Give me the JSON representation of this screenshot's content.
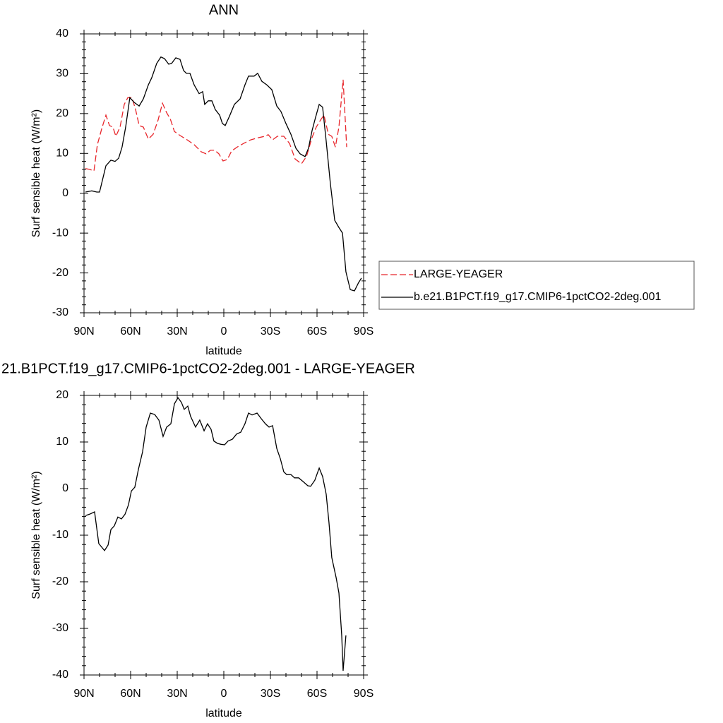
{
  "chart_data": [
    {
      "type": "line",
      "title": "ANN",
      "xlabel": "latitude",
      "ylabel": "Surf sensible heat (W/m²)",
      "xlim": [
        90,
        -90
      ],
      "xticks": [
        {
          "value": 90,
          "label": "90N"
        },
        {
          "value": 60,
          "label": "60N"
        },
        {
          "value": 30,
          "label": "30N"
        },
        0,
        {
          "value": -30,
          "label": "30S"
        },
        {
          "value": -60,
          "label": "60S"
        },
        {
          "value": -90,
          "label": "90S"
        }
      ],
      "ylim": [
        -30,
        40
      ],
      "yticks": [
        -30,
        -20,
        -10,
        0,
        10,
        20,
        30,
        40
      ],
      "legend": "outside-right",
      "series": [
        {
          "name": "LARGE-YEAGER",
          "color": "#e8262b",
          "linestyle": "dashed",
          "x": [
            89.1,
            86.4,
            83.6,
            81.4,
            78.6,
            75.9,
            73.6,
            71.4,
            69.5,
            66.8,
            64.1,
            61.8,
            59.1,
            56.8,
            54.5,
            51.8,
            48.6,
            45.5,
            42.3,
            39.5,
            36.8,
            34.5,
            31.8,
            28.2,
            23.6,
            19.1,
            14.5,
            11.4,
            8.6,
            5.9,
            3.2,
            0.5,
            -2.3,
            -5,
            -8.6,
            -12.7,
            -17.3,
            -21.8,
            -26.4,
            -28.6,
            -31.4,
            -34.5,
            -38.6,
            -42.3,
            -45.9,
            -50,
            -53.2,
            -56.8,
            -59.5,
            -62.3,
            -64.5,
            -67.3,
            -69.5,
            -71.8,
            -74.1,
            -76.8,
            -79.1
          ],
          "values": [
            6.2,
            6,
            5.6,
            12.2,
            16.2,
            19.6,
            17,
            16.6,
            14.3,
            16.6,
            22.3,
            24,
            24,
            21,
            17,
            16.6,
            13.6,
            14.8,
            18.4,
            22.6,
            20.2,
            18.7,
            15.5,
            14.5,
            13.4,
            12.2,
            10.4,
            9.9,
            10.8,
            10.8,
            9.9,
            8.1,
            8.5,
            10.6,
            11.6,
            12.5,
            13.4,
            13.9,
            14.3,
            14.7,
            13.4,
            14.3,
            14.3,
            12.5,
            8.6,
            7.4,
            9.2,
            14,
            16.6,
            18.4,
            19.6,
            14.8,
            14.3,
            11.6,
            16.6,
            28.5,
            11.6
          ]
        },
        {
          "name": "b.e21.B1PCT.f19_g17.CMIP6-1pctCO2-2deg.001",
          "color": "#000000",
          "linestyle": "solid",
          "x": [
            89.1,
            85,
            81.8,
            80,
            75.9,
            72.7,
            70,
            67.7,
            65.5,
            63.2,
            60.5,
            57.7,
            54.5,
            51.8,
            48.6,
            46.4,
            43.2,
            40.5,
            38.2,
            35.5,
            33.6,
            30.9,
            28.2,
            25.9,
            24.1,
            21.8,
            19.1,
            15.9,
            13.6,
            12.3,
            10,
            7.7,
            5.5,
            2.7,
            0.9,
            -0.9,
            -3.6,
            -6.8,
            -10.5,
            -13.6,
            -15.9,
            -19.5,
            -21.8,
            -24.5,
            -27.7,
            -30.9,
            -34.1,
            -36.8,
            -40,
            -43.2,
            -46.4,
            -49.1,
            -52.3,
            -54.5,
            -56.8,
            -59.1,
            -61.4,
            -63.6,
            -65.9,
            -68.6,
            -71.4,
            -74.1,
            -76.4,
            -78.6,
            -81.4,
            -84.1,
            -86.8,
            -88.6
          ],
          "values": [
            0.3,
            0.6,
            0.3,
            0.3,
            6.9,
            8.3,
            8,
            8.8,
            11.6,
            16.6,
            24,
            22.8,
            21.9,
            23.7,
            27.2,
            29,
            32.6,
            34.2,
            33.8,
            32.4,
            32.6,
            34,
            33.6,
            30.8,
            30.1,
            30.1,
            27.2,
            25,
            25.5,
            22.3,
            23.2,
            23.2,
            21,
            19.6,
            17.5,
            17,
            19.3,
            22.3,
            23.7,
            27.2,
            29.4,
            29.4,
            30.1,
            28.1,
            27.2,
            26,
            21.9,
            20.5,
            17.5,
            14.8,
            11.3,
            9.9,
            9.2,
            11.3,
            15.7,
            19.1,
            22.3,
            21.6,
            13.1,
            2.4,
            -6.8,
            -8.6,
            -10,
            -19.7,
            -24.2,
            -24.5,
            -22.4,
            -21.3
          ]
        }
      ]
    },
    {
      "type": "line",
      "title": "21.B1PCT.f19_g17.CMIP6-1pctCO2-2deg.001 - LARGE-YEAGER",
      "xlabel": "latitude",
      "ylabel": "Surf sensible heat (W/m²)",
      "xlim": [
        90,
        -90
      ],
      "xticks": [
        {
          "value": 90,
          "label": "90N"
        },
        {
          "value": 60,
          "label": "60N"
        },
        {
          "value": 30,
          "label": "30N"
        },
        0,
        {
          "value": -30,
          "label": "30S"
        },
        {
          "value": -60,
          "label": "60S"
        },
        {
          "value": -90,
          "label": "90S"
        }
      ],
      "ylim": [
        -40,
        20
      ],
      "yticks": [
        -40,
        -30,
        -20,
        -10,
        0,
        10,
        20
      ],
      "series": [
        {
          "color": "#000000",
          "linestyle": "solid",
          "x": [
            89.1,
            86.4,
            83.2,
            80.5,
            76.8,
            74.5,
            72.7,
            70.5,
            68.2,
            65.9,
            63.6,
            61.4,
            59.5,
            57.3,
            55,
            52.3,
            50,
            47.3,
            44.5,
            41.8,
            39.1,
            36.8,
            34.1,
            31.8,
            29.5,
            27.3,
            25.5,
            23.2,
            21.4,
            18.2,
            15.5,
            12.7,
            10.5,
            8.2,
            6.4,
            4.1,
            1.8,
            -0.5,
            -2.7,
            -5.5,
            -8.2,
            -10.9,
            -13.6,
            -15.9,
            -18.2,
            -21.4,
            -24.1,
            -26.8,
            -29.1,
            -31.4,
            -34.1,
            -36.4,
            -38.6,
            -40.5,
            -43.2,
            -45.5,
            -48.2,
            -51.4,
            -54.1,
            -55.9,
            -58.6,
            -61.4,
            -63.6,
            -65.9,
            -67.7,
            -69.5,
            -72.3,
            -74.1,
            -75.9,
            -76.8,
            -78.6
          ],
          "values": [
            -5.8,
            -5.5,
            -5,
            -11.8,
            -13.3,
            -12.1,
            -8.8,
            -8,
            -6.1,
            -6.5,
            -5.5,
            -3.5,
            -0.5,
            0.3,
            4.1,
            7.9,
            13.2,
            16.2,
            15.9,
            14.7,
            11.2,
            13.2,
            13.9,
            18.2,
            19.5,
            18.5,
            17,
            17.7,
            15.5,
            13.2,
            14.7,
            12.4,
            13.9,
            12.7,
            10.2,
            9.7,
            9.5,
            9.4,
            10.2,
            10.6,
            11.7,
            12.1,
            13.9,
            16.2,
            15.8,
            16.2,
            15,
            13.9,
            13.2,
            13.5,
            8.6,
            6.4,
            3.6,
            3,
            3,
            2.3,
            2.3,
            1.4,
            0.6,
            0.5,
            1.8,
            4.4,
            2.6,
            -1.2,
            -7.3,
            -14.8,
            -19.1,
            -22.4,
            -31.5,
            -39.1,
            -31.5
          ]
        }
      ]
    }
  ]
}
